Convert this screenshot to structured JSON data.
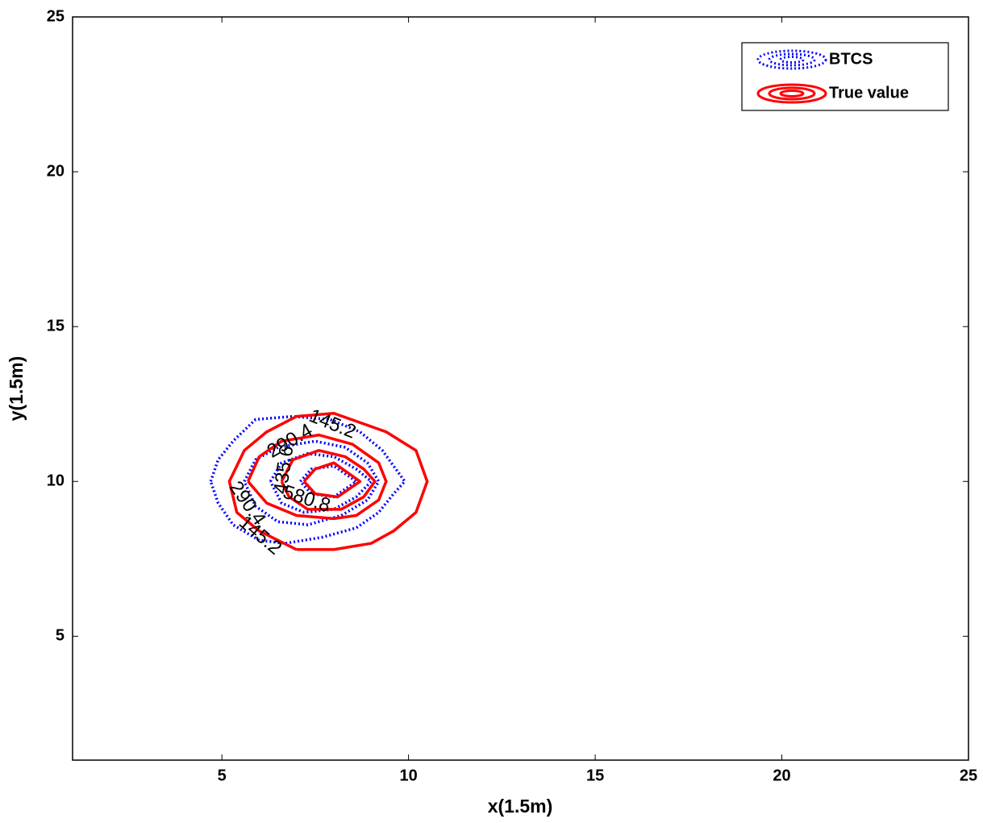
{
  "chart_data": {
    "type": "contour",
    "xlabel": "x(1.5m)",
    "ylabel": "y(1.5m)",
    "xlim": [
      1,
      25
    ],
    "ylim": [
      1,
      25
    ],
    "xticks": [
      5,
      10,
      15,
      20,
      25
    ],
    "yticks": [
      5,
      10,
      15,
      20,
      25
    ],
    "grid": false,
    "legend": "upper right",
    "series": [
      {
        "name": "BTCS",
        "color": "#0000ff",
        "style": "dotted",
        "contours": [
          {
            "level": 145.2,
            "x": [
              4.7,
              4.9,
              5.3,
              5.9,
              6.9,
              7.9,
              8.7,
              9.3,
              9.6,
              9.9,
              9.6,
              9.2,
              8.6,
              7.7,
              6.7,
              6.0,
              5.3,
              4.9,
              4.7
            ],
            "y": [
              10,
              10.7,
              11.3,
              12.0,
              12.1,
              12.0,
              11.6,
              11.0,
              10.5,
              10,
              9.6,
              9.0,
              8.5,
              8.2,
              8.0,
              8.1,
              8.6,
              9.3,
              10
            ]
          },
          {
            "level": 290.4,
            "x": [
              5.6,
              5.9,
              6.5,
              7.5,
              8.3,
              8.9,
              9.2,
              8.9,
              8.2,
              7.3,
              6.5,
              5.9,
              5.6
            ],
            "y": [
              10,
              10.7,
              11.1,
              11.3,
              11.1,
              10.6,
              10,
              9.4,
              8.9,
              8.6,
              8.7,
              9.2,
              10
            ]
          },
          {
            "level": 435.6,
            "x": [
              6.3,
              6.6,
              7.3,
              8.0,
              8.6,
              9.0,
              8.6,
              8.0,
              7.2,
              6.6,
              6.3
            ],
            "y": [
              10,
              10.6,
              10.9,
              10.8,
              10.4,
              10,
              9.5,
              9.1,
              9.0,
              9.3,
              10
            ]
          },
          {
            "level": 580.8,
            "x": [
              7.1,
              7.4,
              8.0,
              8.6,
              8.0,
              7.4,
              7.1
            ],
            "y": [
              10,
              10.4,
              10.5,
              10,
              9.5,
              9.6,
              10
            ]
          }
        ]
      },
      {
        "name": "True value",
        "color": "#ff0000",
        "style": "solid",
        "contours": [
          {
            "x": [
              7.0,
              8.0,
              9.0,
              9.6,
              10.2,
              10.5,
              10.2,
              9.4,
              8.0,
              7.0,
              6.2,
              5.6,
              5.2,
              5.4,
              6.0,
              7.0
            ],
            "y": [
              7.8,
              7.8,
              8.0,
              8.4,
              9.0,
              10,
              11.0,
              11.6,
              12.2,
              12.1,
              11.6,
              11.0,
              10,
              9.0,
              8.4,
              7.8
            ]
          },
          {
            "x": [
              5.7,
              6.0,
              6.6,
              7.6,
              8.5,
              9.2,
              9.4,
              9.2,
              8.6,
              8.0,
              7.0,
              6.2,
              5.7
            ],
            "y": [
              10,
              10.8,
              11.3,
              11.5,
              11.2,
              10.6,
              10,
              9.4,
              8.9,
              8.8,
              8.9,
              9.3,
              10
            ]
          },
          {
            "x": [
              6.6,
              6.9,
              7.6,
              8.3,
              8.8,
              9.1,
              8.8,
              8.2,
              7.3,
              6.8,
              6.6
            ],
            "y": [
              10,
              10.7,
              11.0,
              10.8,
              10.4,
              10,
              9.5,
              9.1,
              9.1,
              9.5,
              10
            ]
          },
          {
            "x": [
              7.2,
              7.5,
              8.0,
              8.7,
              8.1,
              7.5,
              7.2
            ],
            "y": [
              10,
              10.4,
              10.6,
              10,
              9.5,
              9.6,
              10
            ]
          }
        ]
      }
    ]
  }
}
